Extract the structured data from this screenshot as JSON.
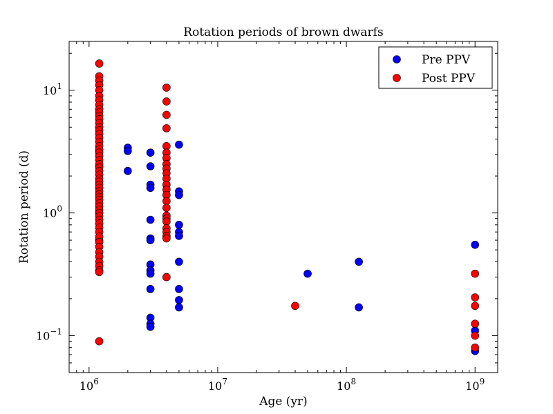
{
  "chart_data": {
    "type": "scatter",
    "title": "Rotation periods of brown dwarfs",
    "xlabel": "Age (yr)",
    "ylabel": "Rotation period (d)",
    "xscale": "log",
    "yscale": "log",
    "xlim": [
      700000,
      1500000000
    ],
    "ylim": [
      0.05,
      25
    ],
    "x_ticks": [
      {
        "value": 1000000,
        "base": "10",
        "exp": "6"
      },
      {
        "value": 10000000,
        "base": "10",
        "exp": "7"
      },
      {
        "value": 100000000,
        "base": "10",
        "exp": "8"
      },
      {
        "value": 1000000000,
        "base": "10",
        "exp": "9"
      }
    ],
    "y_ticks": [
      {
        "value": 0.1,
        "base": "10",
        "exp": "−1"
      },
      {
        "value": 1,
        "base": "10",
        "exp": "0"
      },
      {
        "value": 10,
        "base": "10",
        "exp": "1"
      }
    ],
    "grid": false,
    "legend_position": "top-right",
    "series": [
      {
        "name": "Pre PPV",
        "color": "#0000ff",
        "groups": [
          {
            "age": 1200000,
            "periods": [
              2.4,
              3.2,
              5.0,
              7.0,
              1.0,
              1.6,
              0.6
            ]
          },
          {
            "age": 2000000,
            "periods": [
              3.4,
              3.2,
              2.2
            ]
          },
          {
            "age": 3000000,
            "periods": [
              3.1,
              2.4,
              1.7,
              1.6,
              0.88,
              0.62,
              0.6,
              0.38,
              0.34,
              0.32,
              0.24,
              0.14,
              0.125,
              0.118
            ]
          },
          {
            "age": 5000000,
            "periods": [
              3.6,
              1.5,
              1.4,
              0.8,
              0.7,
              0.65,
              0.4,
              0.24,
              0.195,
              0.17
            ]
          },
          {
            "age": 50000000,
            "periods": [
              0.32
            ]
          },
          {
            "age": 125000000,
            "periods": [
              0.4,
              0.17
            ]
          },
          {
            "age": 1000000000,
            "periods": [
              0.55,
              0.11,
              0.075
            ]
          }
        ]
      },
      {
        "name": "Post PPV",
        "color": "#ff0000",
        "groups": [
          {
            "age": 1200000,
            "periods": [
              16.5,
              13.0,
              12.0,
              11.0,
              10.0,
              9.0,
              8.3,
              7.6,
              7.0,
              6.6,
              6.2,
              5.8,
              5.4,
              5.0,
              4.7,
              4.4,
              4.1,
              3.8,
              3.5,
              3.3,
              3.1,
              2.9,
              2.7,
              2.5,
              2.35,
              2.2,
              2.05,
              1.9,
              1.8,
              1.7,
              1.6,
              1.5,
              1.42,
              1.35,
              1.28,
              1.2,
              1.13,
              1.06,
              1.0,
              0.94,
              0.88,
              0.82,
              0.76,
              0.7,
              0.64,
              0.58,
              0.53,
              0.48,
              0.44,
              0.4,
              0.37,
              0.34,
              0.33,
              0.09
            ]
          },
          {
            "age": 4000000,
            "periods": [
              10.5,
              8.1,
              6.3,
              4.9,
              3.5,
              3.1,
              2.8,
              2.5,
              2.3,
              2.1,
              1.9,
              1.7,
              1.55,
              1.4,
              1.25,
              1.1,
              0.95,
              0.9,
              0.85,
              0.75,
              0.7,
              0.65,
              0.62,
              0.3
            ]
          },
          {
            "age": 40000000,
            "periods": [
              0.175
            ]
          },
          {
            "age": 1000000000,
            "periods": [
              0.32,
              0.205,
              0.175,
              0.125,
              0.1,
              0.08
            ]
          }
        ]
      }
    ]
  }
}
